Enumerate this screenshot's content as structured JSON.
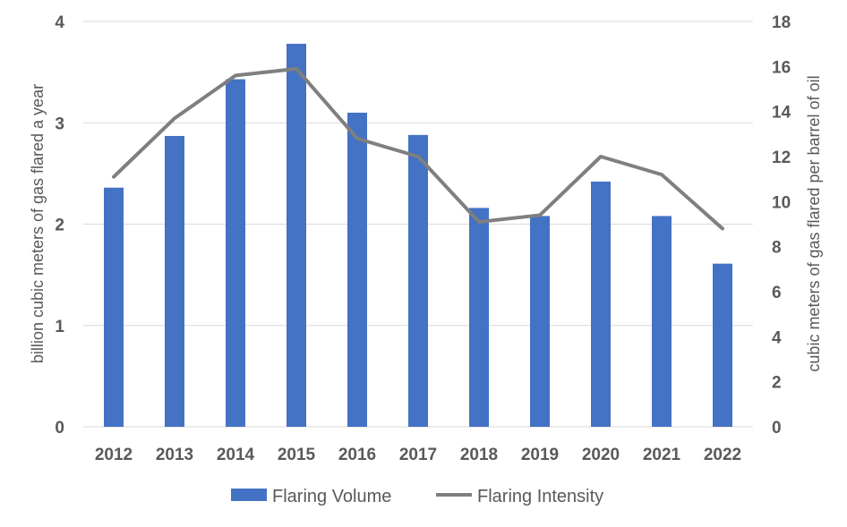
{
  "chart_data": {
    "type": "bar",
    "categories": [
      "2012",
      "2013",
      "2014",
      "2015",
      "2016",
      "2017",
      "2018",
      "2019",
      "2020",
      "2021",
      "2022"
    ],
    "series": [
      {
        "name": "Flaring Volume",
        "type": "bar",
        "axis": "left",
        "color": "#4472C4",
        "values": [
          2.36,
          2.87,
          3.43,
          3.78,
          3.1,
          2.88,
          2.16,
          2.08,
          2.42,
          2.08,
          1.61
        ]
      },
      {
        "name": "Flaring Intensity",
        "type": "line",
        "axis": "right",
        "color": "#7F7F7F",
        "values": [
          11.1,
          13.7,
          15.6,
          15.9,
          12.8,
          12.0,
          9.1,
          9.4,
          12.0,
          11.2,
          8.8
        ]
      }
    ],
    "ylabel": "billion cubic meters of gas flared a year",
    "ylim": [
      0,
      4
    ],
    "yticks": [
      "0",
      "1",
      "2",
      "3",
      "4"
    ],
    "y2label": "cubic meters of gas flared per barrel of oil",
    "y2lim": [
      0,
      18
    ],
    "y2ticks": [
      "0",
      "2",
      "4",
      "6",
      "8",
      "10",
      "12",
      "14",
      "16",
      "18"
    ],
    "grid": true,
    "legend": "bottom"
  }
}
